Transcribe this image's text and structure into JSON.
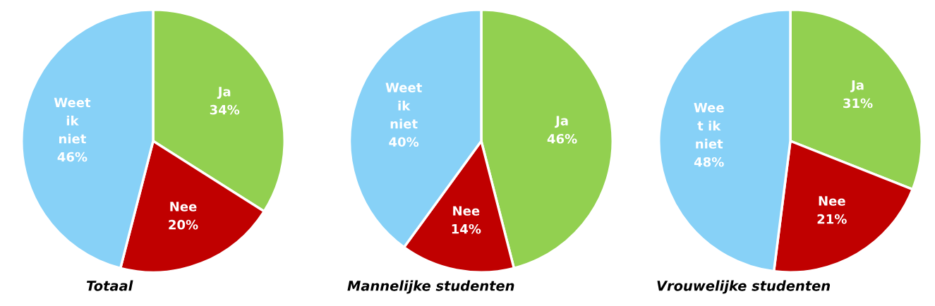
{
  "chart_data": [
    {
      "type": "pie",
      "title": "Totaal",
      "categories": [
        "Ja",
        "Nee",
        "Weet\nik\nniet"
      ],
      "values": [
        34,
        20,
        46
      ],
      "value_labels": [
        "34%",
        "20%",
        "46%"
      ],
      "colors": [
        "#92d050",
        "#c00000",
        "#87d1f7"
      ]
    },
    {
      "type": "pie",
      "title": "Mannelijke studenten",
      "categories": [
        "Ja",
        "Nee",
        "Weet\nik\nniet"
      ],
      "values": [
        46,
        14,
        40
      ],
      "value_labels": [
        "46%",
        "14%",
        "40%"
      ],
      "colors": [
        "#92d050",
        "#c00000",
        "#87d1f7"
      ]
    },
    {
      "type": "pie",
      "title": "Vrouwelijke studenten",
      "categories": [
        "Ja",
        "Nee",
        "Wee\nt ik\nniet"
      ],
      "values": [
        31,
        21,
        48
      ],
      "value_labels": [
        "31%",
        "21%",
        "48%"
      ],
      "colors": [
        "#92d050",
        "#c00000",
        "#87d1f7"
      ]
    }
  ]
}
